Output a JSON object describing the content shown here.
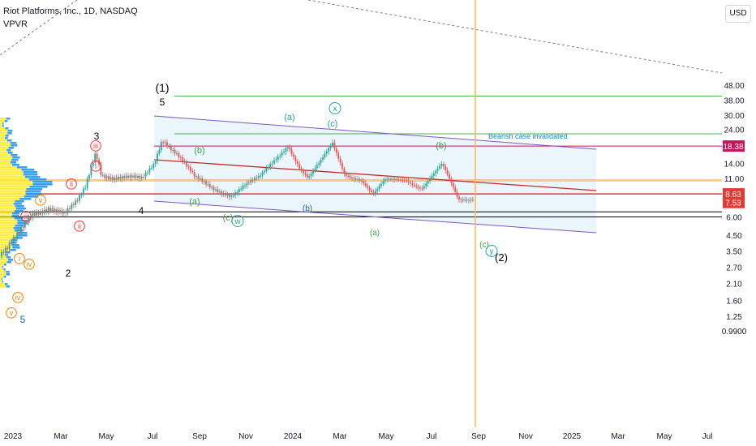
{
  "header": {
    "title": "Riot Platforms, Inc., 1D, NASDAQ",
    "indicator": "VPVR",
    "currency": "USD"
  },
  "chart_data": {
    "type": "candlestick",
    "ylog": true,
    "y_ticks": [
      "48.00",
      "38.00",
      "30.00",
      "24.00",
      "18.38",
      "14.00",
      "11.00",
      "8.63",
      "7.53",
      "6.00",
      "4.50",
      "3.50",
      "2.70",
      "2.10",
      "1.60",
      "1.25",
      "0.9900"
    ],
    "price_tags": [
      {
        "label": "18.38",
        "value": 18.38,
        "color": "#c2185b"
      },
      {
        "label": "8.63",
        "value": 8.63,
        "color": "#e53935"
      },
      {
        "label": "7.53",
        "value": 7.53,
        "color": "#e53935"
      }
    ],
    "x_ticks": [
      "2023",
      "Mar",
      "May",
      "Jul",
      "Sep",
      "Nov",
      "2024",
      "Mar",
      "May",
      "Jul",
      "Sep",
      "Nov",
      "2025",
      "Mar",
      "May",
      "Jul"
    ],
    "annotation": "Bearish case invalidated",
    "horizontal_lines": [
      {
        "value": 40.5,
        "color": "#4caf50"
      },
      {
        "value": 22.3,
        "color": "#4caf50"
      },
      {
        "value": 18.38,
        "color": "#c2185b"
      },
      {
        "value": 10.7,
        "color": "#ffb74d"
      },
      {
        "value": 8.63,
        "color": "#e53935"
      },
      {
        "value": 6.5,
        "color": "#000000"
      },
      {
        "value": 6.0,
        "color": "#000000"
      }
    ],
    "wave_labels": [
      {
        "text": "(1)",
        "color": "#000000"
      },
      {
        "text": "5",
        "color": "#000000"
      },
      {
        "text": "3",
        "color": "#000000"
      },
      {
        "text": "4",
        "color": "#000000"
      },
      {
        "text": "2",
        "color": "#000000"
      },
      {
        "text": "5",
        "color": "#1565c0"
      },
      {
        "text": "(2)",
        "color": "#000000"
      },
      {
        "text": "(a)",
        "color": "#26a69a"
      },
      {
        "text": "(c)",
        "color": "#26a69a"
      },
      {
        "text": "x",
        "color": "#26a69a"
      },
      {
        "text": "(b)",
        "color": "#43a047"
      },
      {
        "text": "(b)",
        "color": "#43a047"
      },
      {
        "text": "(a)",
        "color": "#43a047"
      },
      {
        "text": "(c)",
        "color": "#43a047"
      },
      {
        "text": "w",
        "color": "#26a69a"
      },
      {
        "text": "(b)",
        "color": "#1565c0"
      },
      {
        "text": "(a)",
        "color": "#43a047"
      },
      {
        "text": "(c)",
        "color": "#43a047"
      },
      {
        "text": "y",
        "color": "#26a69a"
      },
      {
        "text": "iii",
        "color": "#e53935"
      },
      {
        "text": "iv",
        "color": "#f57c00"
      },
      {
        "text": "v",
        "color": "#f57c00"
      },
      {
        "text": "ii",
        "color": "#e53935"
      },
      {
        "text": "iii",
        "color": "#e53935"
      },
      {
        "text": "i",
        "color": "#f57c00"
      },
      {
        "text": "iv",
        "color": "#f57c00"
      },
      {
        "text": "ii",
        "color": "#e53935"
      },
      {
        "text": "v",
        "color": "#f57c00"
      },
      {
        "text": "i",
        "color": "#e53935"
      }
    ]
  }
}
